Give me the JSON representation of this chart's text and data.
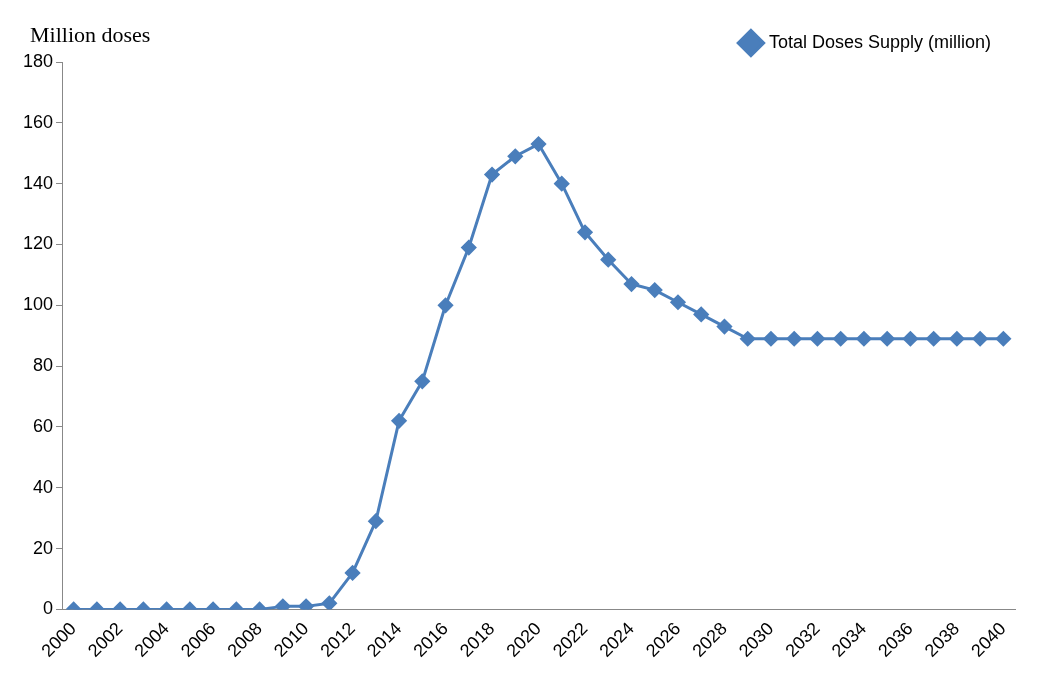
{
  "chart_data": {
    "type": "line",
    "ylabel": "Million doses",
    "categories": [
      "2000",
      null,
      "2002",
      null,
      "2004",
      null,
      "2006",
      null,
      "2008",
      null,
      "2010",
      null,
      "2012",
      null,
      "2014",
      null,
      "2016",
      null,
      "2018",
      null,
      "2020",
      null,
      "2022",
      null,
      "2024",
      null,
      "2026",
      null,
      "2028",
      null,
      "2030",
      null,
      "2032",
      null,
      "2034",
      null,
      "2036",
      null,
      "2038",
      null,
      "2040"
    ],
    "series": [
      {
        "name": "Total Doses Supply (million)",
        "color": "#4a7ebb",
        "values": [
          0,
          0,
          0,
          0,
          0,
          0,
          0,
          0,
          0,
          1,
          1,
          2,
          12,
          29,
          62,
          75,
          100,
          119,
          143,
          149,
          153,
          140,
          124,
          115,
          107,
          105,
          101,
          97,
          93,
          89,
          89,
          89,
          89,
          89,
          89,
          89,
          89,
          89,
          89,
          89,
          89
        ]
      }
    ],
    "ylim": [
      0,
      180
    ],
    "yticks": [
      0,
      20,
      40,
      60,
      80,
      100,
      120,
      140,
      160,
      180
    ],
    "grid": false,
    "legend": "top right",
    "marker": "diamond",
    "line_style": "solid"
  }
}
